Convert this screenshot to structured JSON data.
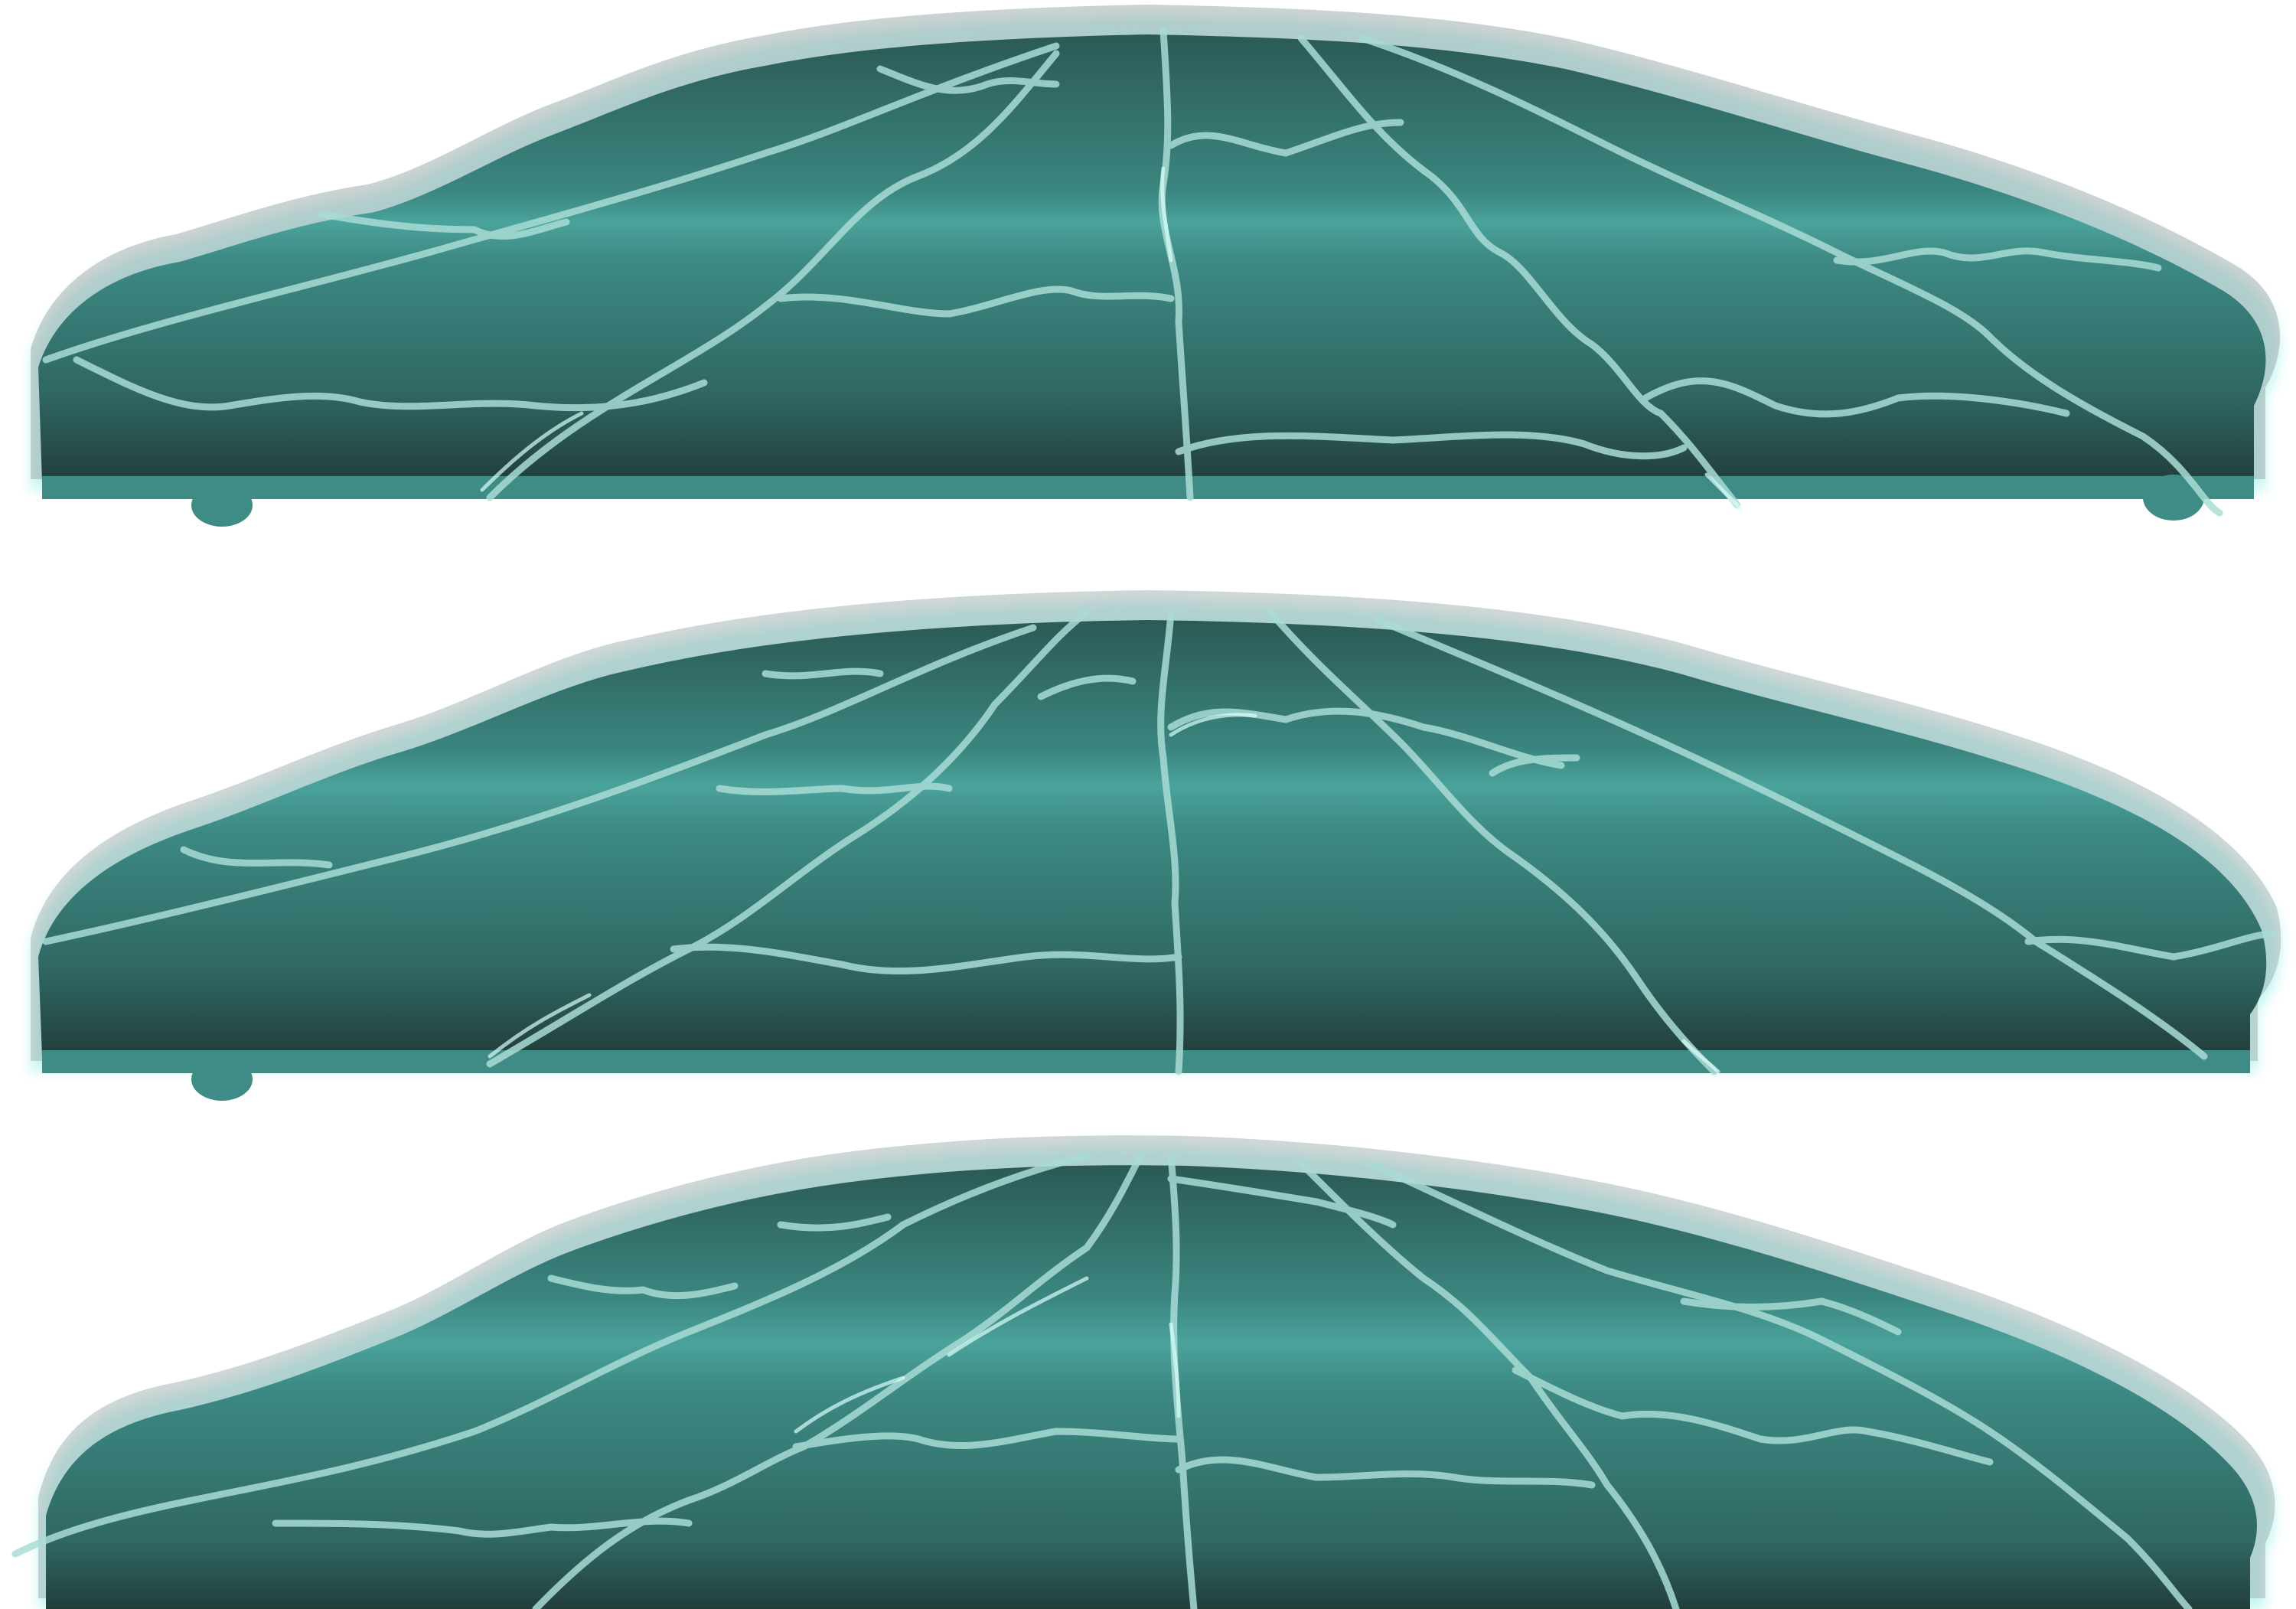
{
  "sprite_sheet": {
    "background": "#ffffff",
    "platforms": [
      {
        "name": "platform-top",
        "variant": 1
      },
      {
        "name": "platform-middle",
        "variant": 2
      },
      {
        "name": "platform-bottom",
        "variant": 3
      }
    ]
  },
  "colors": {
    "rim_glow": "#b8f4f0",
    "rim_shadow": "#9aa6a6",
    "top_dark": "#2d5e59",
    "mid_teal": "#3f8b85",
    "band_teal": "#4aa39b",
    "base_dark": "#223e3b",
    "crack_light": "#a9dcd6",
    "crack_glow": "#d8fffb",
    "base_strip": "#3f8b85"
  }
}
